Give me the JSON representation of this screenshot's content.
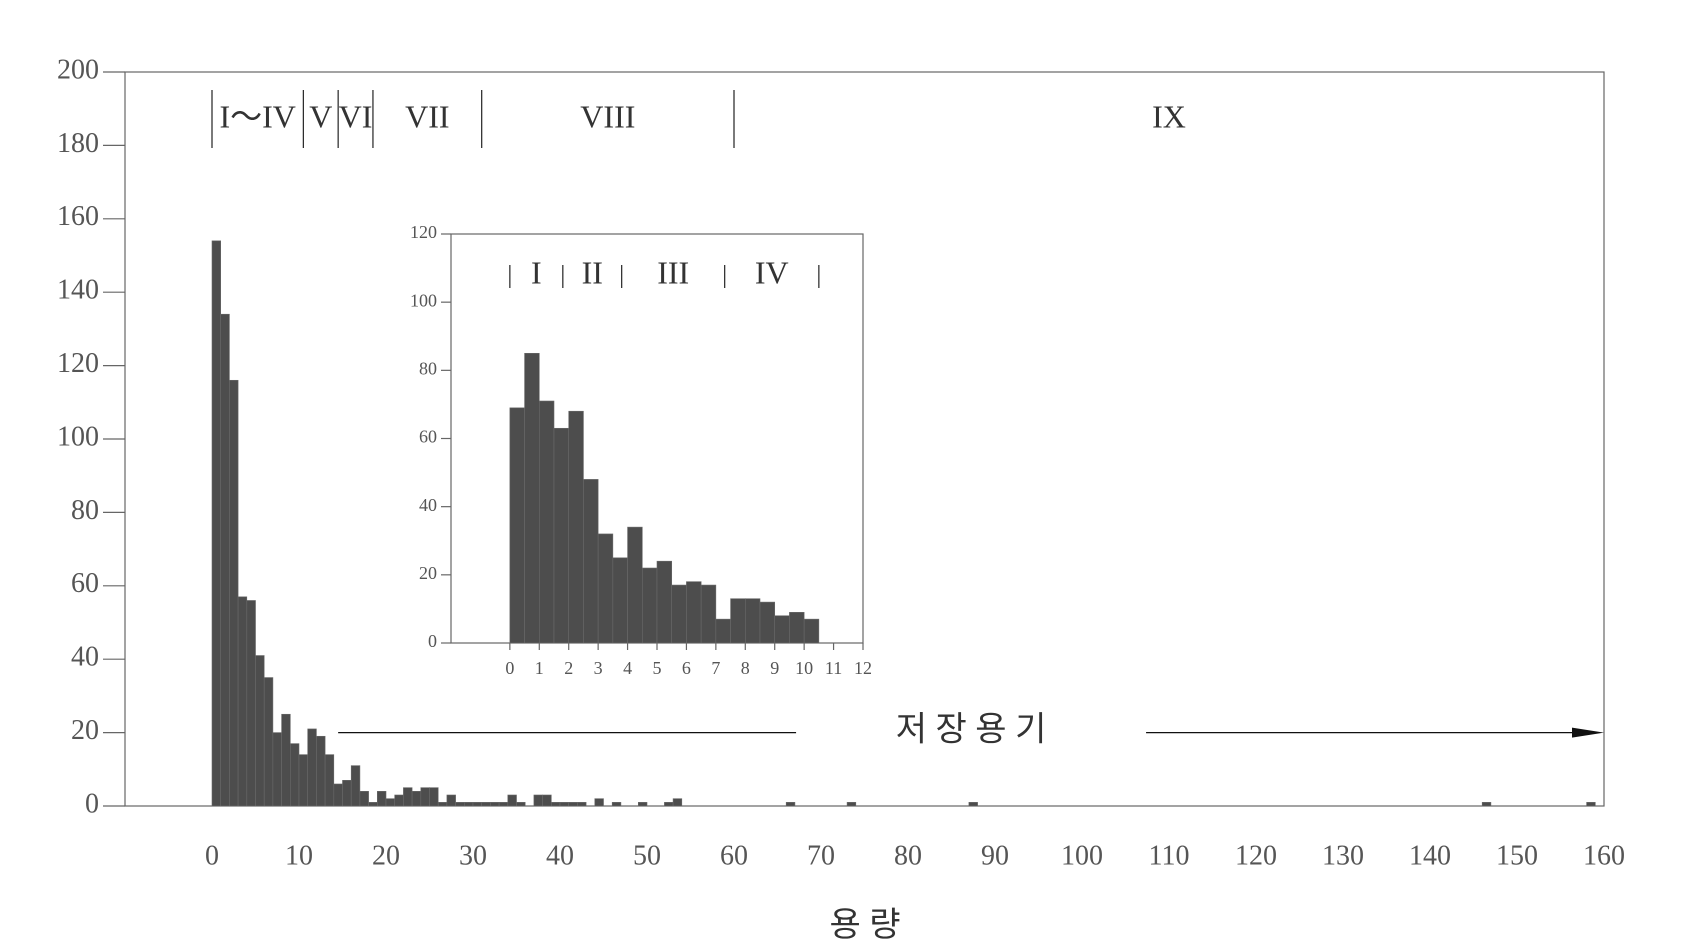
{
  "chart_data": [
    {
      "type": "histogram",
      "xlabel": "용 량",
      "bins": [
        0,
        1,
        2,
        3,
        4,
        5,
        6,
        7,
        8,
        9,
        10,
        11,
        12,
        13,
        14,
        15,
        16,
        17,
        18,
        19,
        20,
        21,
        22,
        23,
        24,
        25,
        26,
        27,
        28,
        29,
        30,
        31,
        32,
        33,
        34,
        35,
        36,
        37,
        38,
        39,
        40,
        41,
        42,
        43,
        44,
        45,
        46,
        47,
        48,
        49,
        50,
        51,
        52,
        53,
        54,
        55,
        56,
        57,
        58,
        59,
        60,
        61,
        62,
        63,
        64,
        65,
        66,
        67,
        68,
        69,
        70,
        71,
        72,
        73,
        74,
        75,
        76,
        77,
        78,
        79,
        80,
        81,
        82,
        83,
        84,
        85,
        86,
        87,
        88,
        89,
        90,
        91,
        92,
        93,
        94,
        95,
        96,
        97,
        98,
        99,
        100,
        101,
        102,
        103,
        104,
        105,
        106,
        107,
        108,
        109,
        110,
        111,
        112,
        113,
        114,
        115,
        116,
        117,
        118,
        119,
        120,
        121,
        122,
        123,
        124,
        125,
        126,
        127,
        128,
        129,
        130,
        131,
        132,
        133,
        134,
        135,
        136,
        137,
        138,
        139,
        140,
        141,
        142,
        143,
        144,
        145,
        146,
        147,
        148,
        149,
        150,
        151,
        152,
        153,
        154,
        155,
        156,
        157,
        158,
        159,
        160
      ],
      "counts": [
        154,
        134,
        116,
        57,
        56,
        41,
        35,
        20,
        25,
        17,
        14,
        21,
        19,
        14,
        6,
        7,
        11,
        4,
        1,
        4,
        2,
        3,
        5,
        4,
        5,
        5,
        1,
        3,
        1,
        1,
        1,
        1,
        1,
        1,
        3,
        1,
        0,
        3,
        3,
        1,
        1,
        1,
        1,
        0,
        2,
        0,
        1,
        0,
        0,
        1,
        0,
        0,
        1,
        2,
        0,
        0,
        0,
        0,
        0,
        0,
        0,
        0,
        0,
        0,
        0,
        0,
        1,
        0,
        0,
        0,
        0,
        0,
        0,
        1,
        0,
        0,
        0,
        0,
        0,
        0,
        0,
        0,
        0,
        0,
        0,
        0,
        0,
        1,
        0,
        0,
        0,
        0,
        0,
        0,
        0,
        0,
        0,
        0,
        0,
        0,
        0,
        0,
        0,
        0,
        0,
        0,
        0,
        0,
        0,
        0,
        0,
        0,
        0,
        0,
        0,
        0,
        0,
        0,
        0,
        0,
        0,
        0,
        0,
        0,
        0,
        0,
        0,
        0,
        0,
        0,
        0,
        0,
        0,
        0,
        0,
        0,
        0,
        0,
        0,
        0,
        0,
        0,
        0,
        0,
        0,
        0,
        1,
        0,
        0,
        0,
        0,
        0,
        0,
        0,
        0,
        0,
        0,
        0,
        1,
        0
      ],
      "color": "#4d4d4d",
      "xlim": [
        -10,
        160
      ],
      "xticks": [
        0,
        10,
        20,
        30,
        40,
        50,
        60,
        70,
        80,
        90,
        100,
        110,
        120,
        130,
        140,
        150,
        160
      ],
      "ylim": [
        0,
        200
      ],
      "yticks": [
        0,
        20,
        40,
        60,
        80,
        100,
        120,
        140,
        160,
        180,
        200
      ],
      "regions": {
        "boundaries": [
          0,
          10.5,
          14.5,
          18.5,
          31,
          60
        ],
        "labels": [
          "I～IV",
          "V",
          "VI",
          "VII",
          "VIII",
          "IX"
        ]
      },
      "annotation": {
        "label": "저 장 용 기",
        "from": 14.5,
        "to": 160,
        "y": 20
      }
    },
    {
      "type": "histogram",
      "bins": [
        0,
        0.5,
        1,
        1.5,
        2,
        2.5,
        3,
        3.5,
        4,
        4.5,
        5,
        5.5,
        6,
        6.5,
        7,
        7.5,
        8,
        8.5,
        9,
        9.5,
        10,
        10.5
      ],
      "counts": [
        69,
        85,
        71,
        63,
        68,
        48,
        32,
        25,
        34,
        22,
        24,
        17,
        18,
        17,
        7,
        13,
        13,
        12,
        8,
        9,
        7
      ],
      "color": "#4d4d4d",
      "xlim": [
        -2,
        12
      ],
      "xticks": [
        0,
        1,
        2,
        3,
        4,
        5,
        6,
        7,
        8,
        9,
        10,
        11,
        12
      ],
      "ylim": [
        0,
        120
      ],
      "yticks": [
        0,
        20,
        40,
        60,
        80,
        100,
        120
      ],
      "regions": {
        "boundaries": [
          0,
          1.8,
          3.8,
          7.3,
          10.5
        ],
        "labels": [
          "I",
          "II",
          "III",
          "IV"
        ]
      }
    }
  ]
}
